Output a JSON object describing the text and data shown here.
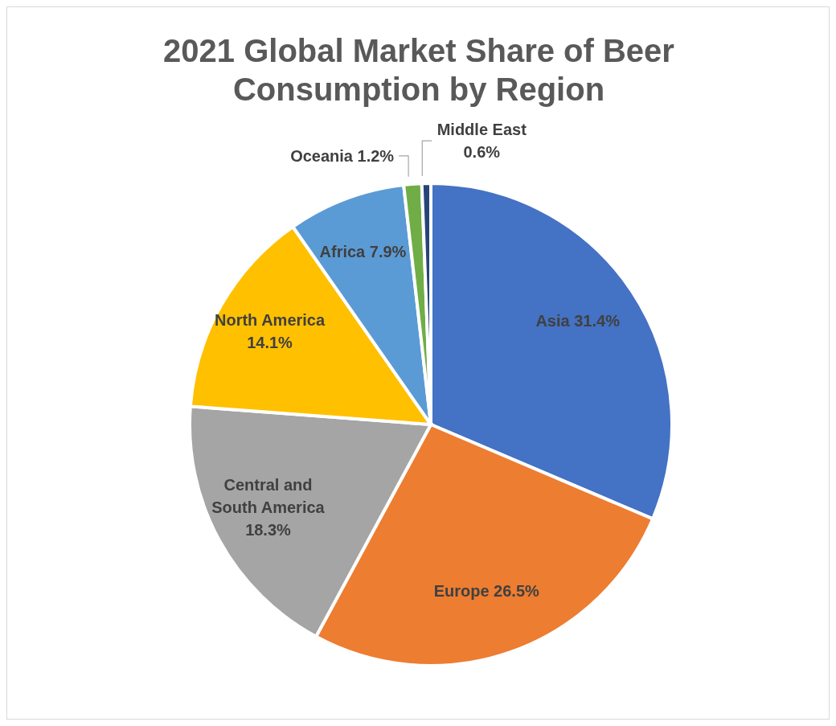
{
  "chart_data": {
    "type": "pie",
    "title": "2021 Global Market Share of Beer Consumption by Region",
    "categories": [
      "Asia",
      "Europe",
      "Central and South America",
      "North America",
      "Africa",
      "Oceania",
      "Middle East"
    ],
    "values": [
      31.4,
      26.5,
      18.3,
      14.1,
      7.9,
      1.2,
      0.6
    ],
    "value_labels": [
      "31.4%",
      "26.5%",
      "18.3%",
      "14.1%",
      "7.9%",
      "1.2%",
      "0.6%"
    ],
    "colors": [
      "#4472c4",
      "#ed7d31",
      "#a5a5a5",
      "#ffc000",
      "#5b9bd5",
      "#70ad47",
      "#264478"
    ],
    "legend": false
  }
}
